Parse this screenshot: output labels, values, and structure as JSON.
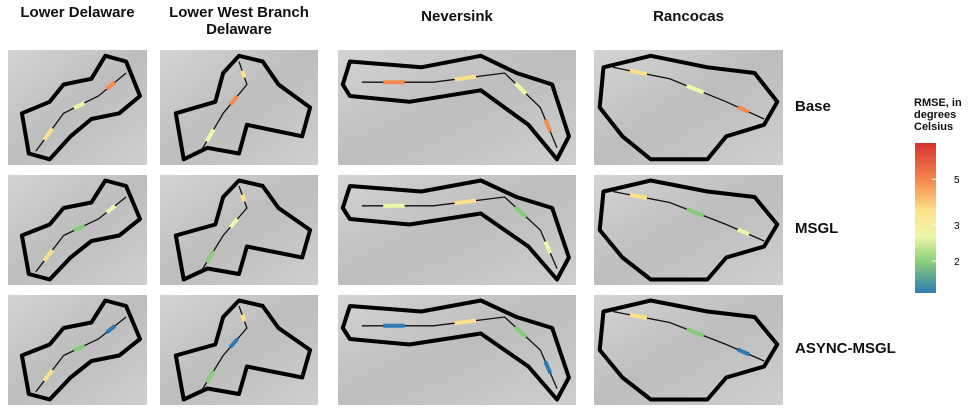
{
  "columns": [
    {
      "title": "Lower Delaware"
    },
    {
      "title": "Lower West Branch Delaware"
    },
    {
      "title": "Neversink"
    },
    {
      "title": "Rancocas"
    }
  ],
  "rows": [
    {
      "label": "Base"
    },
    {
      "label": "MSGL"
    },
    {
      "label": "ASYNC-MSGL"
    }
  ],
  "legend": {
    "title": "RMSE, in degrees Celsius",
    "ticks": [
      5,
      3,
      2
    ],
    "range": [
      1.4,
      7.5
    ],
    "log": true
  }
}
